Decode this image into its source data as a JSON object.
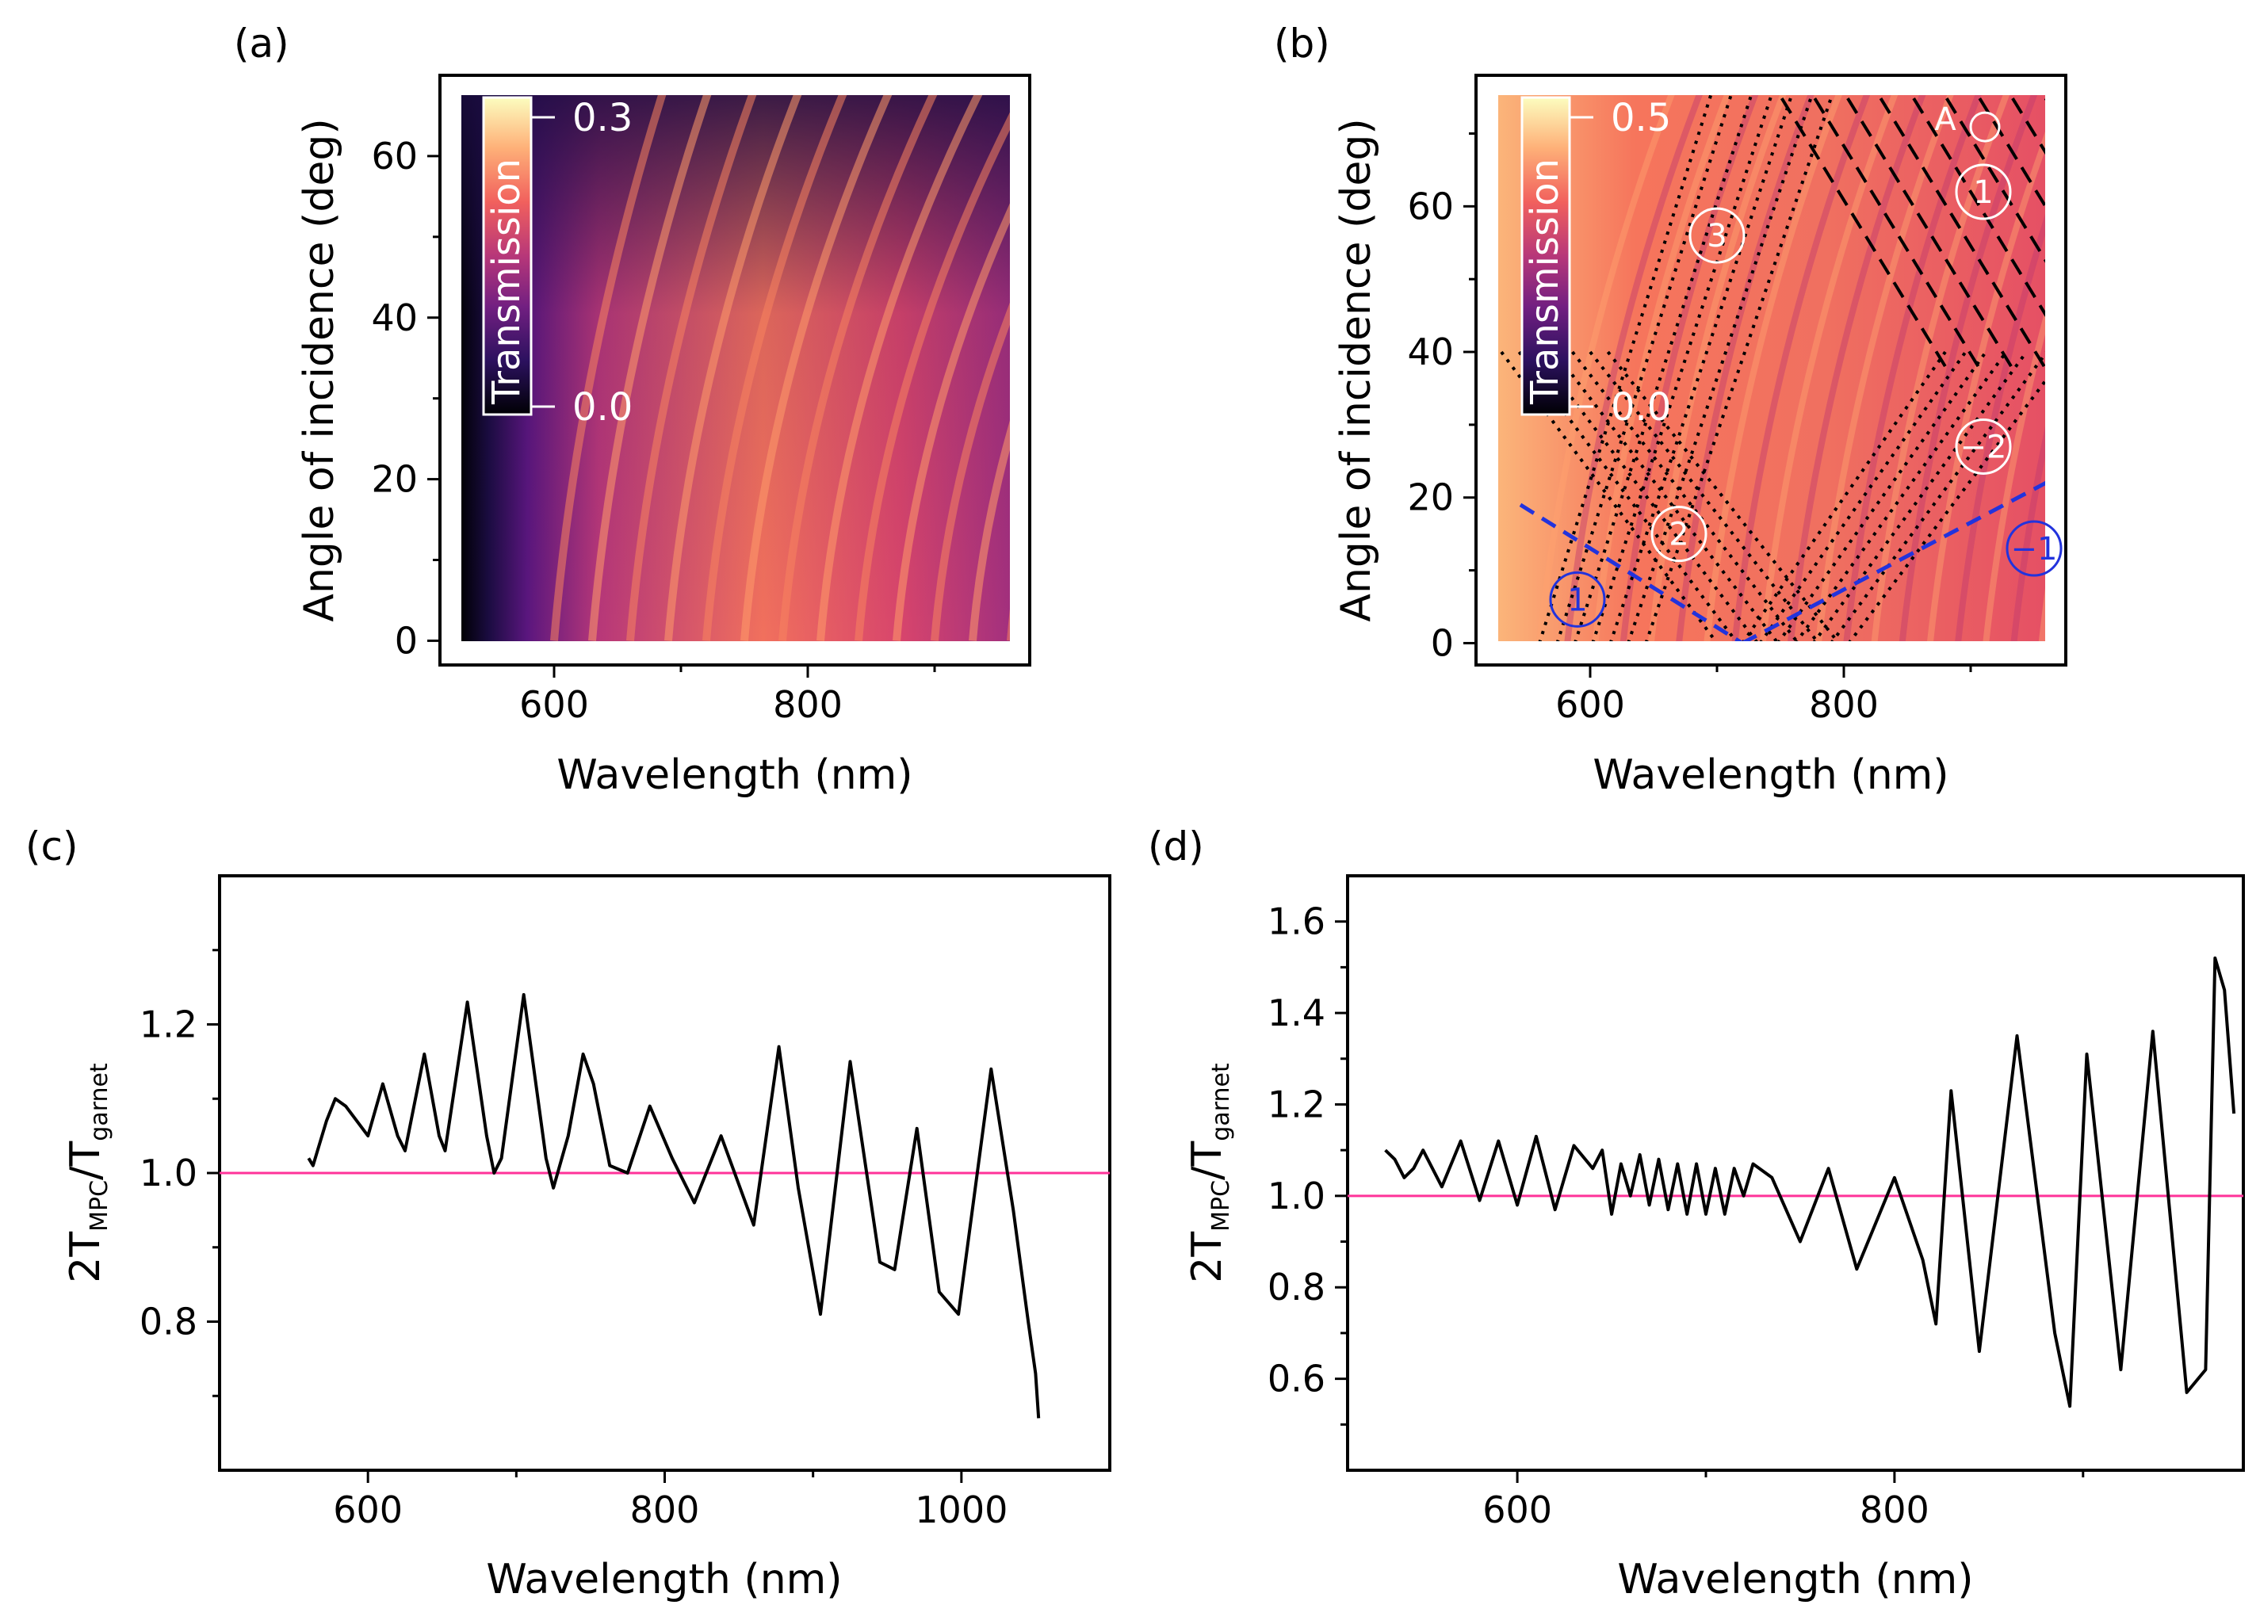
{
  "panels": {
    "a": {
      "label": "(a)"
    },
    "b": {
      "label": "(b)"
    },
    "c": {
      "label": "(c)"
    },
    "d": {
      "label": "(d)"
    }
  },
  "colors": {
    "ink": "#000000",
    "reference_line": "#ff3399",
    "dashed_blue": "#2233dd",
    "colormap": [
      "#000004",
      "#2c115f",
      "#721f81",
      "#b73779",
      "#f1605d",
      "#feb078",
      "#fcfdbf"
    ]
  },
  "chart_data": [
    {
      "panel": "a",
      "type": "heatmap",
      "title": "",
      "xlabel": "Wavelength (nm)",
      "ylabel": "Angle of incidence (deg)",
      "xlim": [
        510,
        975
      ],
      "ylim": [
        -3,
        70
      ],
      "xticks": [
        600,
        800
      ],
      "yticks": [
        0,
        20,
        40,
        60
      ],
      "colorbar": {
        "label": "Transmission",
        "max_label": "0.3",
        "min_label": "0.0",
        "range": [
          0.0,
          0.3
        ]
      },
      "data_extent": {
        "x": [
          530,
          970
        ],
        "y": [
          0,
          70
        ]
      }
    },
    {
      "panel": "b",
      "type": "heatmap",
      "title": "",
      "xlabel": "Wavelength (nm)",
      "ylabel": "Angle of incidence (deg)",
      "xlim": [
        510,
        975
      ],
      "ylim": [
        -3,
        78
      ],
      "xticks": [
        600,
        800
      ],
      "yticks": [
        0,
        20,
        40,
        60
      ],
      "colorbar": {
        "label": "Transmission",
        "max_label": "0.5",
        "min_label": "0.0",
        "range": [
          0.0,
          0.5
        ]
      },
      "data_extent": {
        "x": [
          530,
          970
        ],
        "y": [
          0,
          76
        ]
      },
      "annotations": [
        {
          "text": "A",
          "x": 880,
          "y": 72
        },
        {
          "text": "1",
          "x": 910,
          "y": 62,
          "circled": true,
          "color": "white"
        },
        {
          "text": "3",
          "x": 700,
          "y": 56,
          "circled": true,
          "color": "white"
        },
        {
          "text": "−2",
          "x": 910,
          "y": 27,
          "circled": true,
          "color": "white"
        },
        {
          "text": "2",
          "x": 670,
          "y": 15,
          "circled": true,
          "color": "white"
        },
        {
          "text": "1",
          "x": 590,
          "y": 6,
          "circled": true,
          "color": "blue"
        },
        {
          "text": "−1",
          "x": 950,
          "y": 13,
          "circled": true,
          "color": "blue"
        }
      ],
      "blue_dashed_lines": [
        {
          "x": [
            545,
            720
          ],
          "y": [
            19,
            0
          ]
        },
        {
          "x": [
            720,
            970
          ],
          "y": [
            0,
            23
          ]
        }
      ]
    },
    {
      "panel": "c",
      "type": "line",
      "title": "",
      "xlabel": "Wavelength (nm)",
      "ylabel": "2T_MPC/T_garnet",
      "ylabel_parts": {
        "lead": "2T",
        "sub1": "MPC",
        "mid": "/T",
        "sub2": "garnet"
      },
      "xlim": [
        500,
        1100
      ],
      "ylim": [
        0.6,
        1.4
      ],
      "xticks": [
        600,
        800,
        1000
      ],
      "yticks": [
        "0.8",
        "1.0",
        "1.2"
      ],
      "reference_y": 1.0,
      "series": [
        {
          "name": "ratio",
          "x": [
            560,
            563,
            566,
            572,
            578,
            585,
            600,
            610,
            620,
            625,
            638,
            648,
            652,
            667,
            680,
            685,
            690,
            705,
            720,
            725,
            735,
            745,
            752,
            763,
            775,
            790,
            805,
            820,
            838,
            860,
            877,
            890,
            905,
            925,
            945,
            955,
            970,
            985,
            998,
            1020,
            1035,
            1045,
            1050,
            1052
          ],
          "y": [
            1.02,
            1.01,
            1.03,
            1.07,
            1.1,
            1.09,
            1.05,
            1.12,
            1.05,
            1.03,
            1.16,
            1.05,
            1.03,
            1.23,
            1.05,
            1.0,
            1.02,
            1.24,
            1.02,
            0.98,
            1.05,
            1.16,
            1.12,
            1.01,
            1.0,
            1.09,
            1.02,
            0.96,
            1.05,
            0.93,
            1.17,
            0.98,
            0.81,
            1.15,
            0.88,
            0.87,
            1.06,
            0.84,
            0.81,
            1.14,
            0.95,
            0.8,
            0.73,
            0.67
          ]
        }
      ]
    },
    {
      "panel": "d",
      "type": "line",
      "title": "",
      "xlabel": "Wavelength (nm)",
      "ylabel": "2T_MPC/T_garnet",
      "ylabel_parts": {
        "lead": "2T",
        "sub1": "MPC",
        "mid": "/T",
        "sub2": "garnet"
      },
      "xlim": [
        510,
        985
      ],
      "ylim": [
        0.4,
        1.7
      ],
      "xticks": [
        600,
        800
      ],
      "yticks": [
        "0.6",
        "0.8",
        "1.0",
        "1.2",
        "1.4",
        "1.6"
      ],
      "reference_y": 1.0,
      "series": [
        {
          "name": "ratio",
          "x": [
            530,
            535,
            540,
            545,
            550,
            560,
            570,
            580,
            590,
            600,
            610,
            620,
            630,
            640,
            645,
            650,
            655,
            660,
            665,
            670,
            675,
            680,
            685,
            690,
            695,
            700,
            705,
            710,
            715,
            720,
            725,
            735,
            750,
            765,
            780,
            800,
            815,
            822,
            830,
            845,
            865,
            885,
            893,
            902,
            920,
            937,
            955,
            965,
            970,
            975,
            980
          ],
          "y": [
            1.1,
            1.08,
            1.04,
            1.06,
            1.1,
            1.02,
            1.12,
            0.99,
            1.12,
            0.98,
            1.13,
            0.97,
            1.11,
            1.06,
            1.1,
            0.96,
            1.07,
            1.0,
            1.09,
            0.98,
            1.08,
            0.97,
            1.07,
            0.96,
            1.07,
            0.96,
            1.06,
            0.96,
            1.06,
            1.0,
            1.07,
            1.04,
            0.9,
            1.06,
            0.84,
            1.04,
            0.86,
            0.72,
            1.23,
            0.66,
            1.35,
            0.7,
            0.54,
            1.31,
            0.62,
            1.36,
            0.57,
            0.62,
            1.52,
            1.45,
            1.18
          ]
        }
      ]
    }
  ]
}
